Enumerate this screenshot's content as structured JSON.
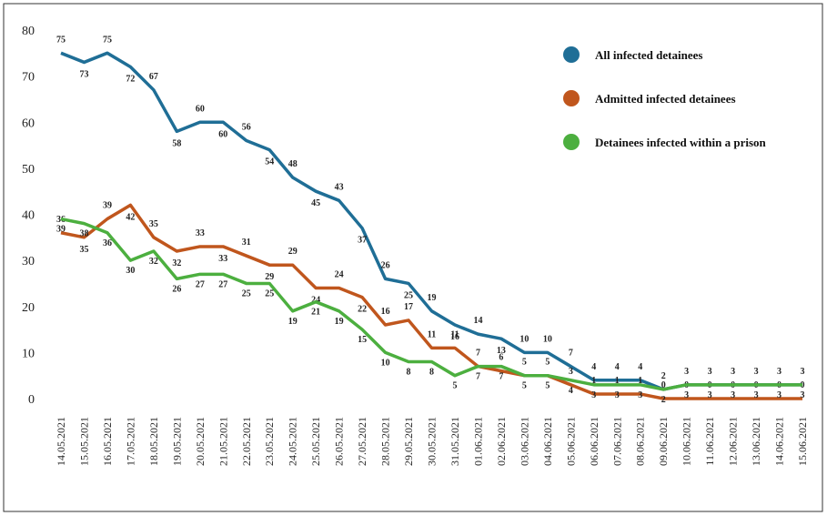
{
  "chart_data": {
    "type": "line",
    "categories": [
      "14.05.2021",
      "15.05.2021",
      "16.05.2021",
      "17.05.2021",
      "18.05.2021",
      "19.05.2021",
      "20.05.2021",
      "21.05.2021",
      "22.05.2021",
      "23.05.2021",
      "24.05.2021",
      "25.05.2021",
      "26.05.2021",
      "27.05.2021",
      "28.05.2021",
      "29.05.2021",
      "30.05.2021",
      "31.05.2021",
      "01.06.2021",
      "02.06.2021",
      "03.06.2021",
      "04.06.2021",
      "05.06.2021",
      "06.06.2021",
      "07.06.2021",
      "08.06.2021",
      "09.06.2021",
      "10.06.2021",
      "11.06.2021",
      "12.06.2021",
      "13.06.2021",
      "14.06.2021",
      "15.06.2021"
    ],
    "series": [
      {
        "name": "All infected detainees",
        "color": "#1f6e96",
        "values": [
          75,
          73,
          75,
          72,
          67,
          58,
          60,
          60,
          56,
          54,
          48,
          45,
          43,
          37,
          26,
          25,
          19,
          16,
          14,
          13,
          10,
          10,
          7,
          4,
          4,
          4,
          2,
          3,
          3,
          3,
          3,
          3,
          3
        ]
      },
      {
        "name": "Admitted infected detainees",
        "color": "#c0561d",
        "values": [
          36,
          35,
          39,
          42,
          35,
          32,
          33,
          33,
          31,
          29,
          29,
          24,
          24,
          22,
          16,
          17,
          11,
          11,
          7,
          6,
          5,
          5,
          3,
          1,
          1,
          1,
          0,
          0,
          0,
          0,
          0,
          0,
          0
        ]
      },
      {
        "name": "Detainees infected within a prison",
        "color": "#4caf3f",
        "values": [
          39,
          38,
          36,
          30,
          32,
          26,
          27,
          27,
          25,
          25,
          19,
          21,
          19,
          15,
          10,
          8,
          8,
          5,
          7,
          7,
          5,
          5,
          4,
          3,
          3,
          3,
          2,
          3,
          3,
          3,
          3,
          3,
          3
        ]
      }
    ],
    "ylim": [
      0,
      80
    ],
    "yticks": [
      0,
      10,
      20,
      30,
      40,
      50,
      60,
      70,
      80
    ],
    "legend": "upper right"
  }
}
